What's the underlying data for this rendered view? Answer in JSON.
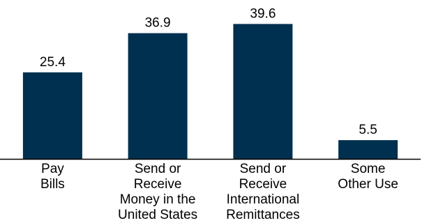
{
  "chart_data": {
    "type": "bar",
    "categories": [
      "Pay Bills",
      "Send or Receive Money in the United States",
      "Send or Receive International Remittances",
      "Some Other Use"
    ],
    "category_label_lines": [
      [
        "Pay",
        "Bills"
      ],
      [
        "Send or",
        "Receive",
        "Money in the",
        "United States"
      ],
      [
        "Send or",
        "Receive",
        "International",
        "Remittances"
      ],
      [
        "Some",
        "Other Use"
      ]
    ],
    "values": [
      25.4,
      36.9,
      39.6,
      5.5
    ],
    "value_labels": [
      "25.4",
      "36.9",
      "39.6",
      "5.5"
    ],
    "title": "",
    "xlabel": "",
    "ylabel": "",
    "ylim": [
      0,
      45
    ],
    "grid": false,
    "legend": "none",
    "bar_color": "#00304f",
    "axis_color": "#000000"
  }
}
